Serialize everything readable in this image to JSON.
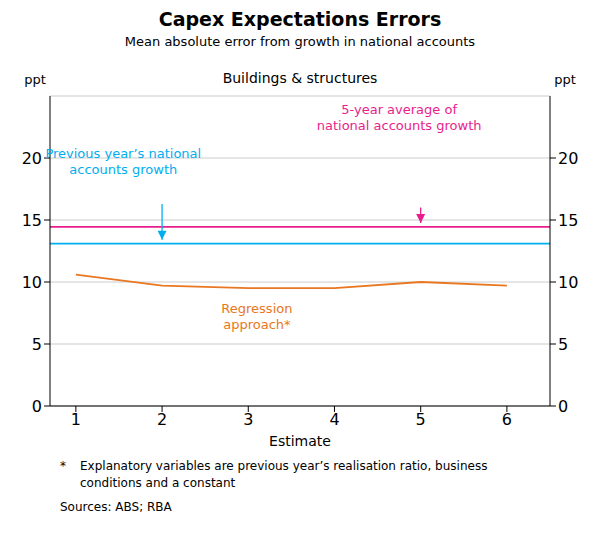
{
  "chart_data": {
    "type": "line",
    "title": "Capex Expectations Errors",
    "subtitle": "Mean absolute error from growth in national accounts",
    "panel_label": "Buildings & structures",
    "x_label": "Estimate",
    "y_label": "ppt",
    "y2_label": "ppt",
    "x": [
      1,
      2,
      3,
      4,
      5,
      6
    ],
    "series": [
      {
        "color": "#E87722",
        "values": [
          10.6,
          9.7,
          9.5,
          9.5,
          10.0,
          9.7
        ]
      }
    ],
    "hlines": [
      {
        "y": 13.1,
        "color": "#00AEEF"
      },
      {
        "y": 14.45,
        "color": "#E91E8C"
      }
    ],
    "annotations": [
      {
        "text": "Previous year’s national\naccounts growth",
        "color": "#00AEEF"
      },
      {
        "text": "5-year average of\nnational accounts growth",
        "color": "#E91E8C"
      },
      {
        "text": "Regression\napproach*",
        "color": "#E87722"
      }
    ],
    "xlim": [
      0.7,
      6.5
    ],
    "xticks": [
      1,
      2,
      3,
      4,
      5,
      6
    ],
    "ylim": [
      0,
      25
    ],
    "yticks": [
      0,
      5,
      10,
      15,
      20
    ],
    "y2lim": [
      0,
      25
    ],
    "y2ticks": [
      0,
      5,
      10,
      15,
      20
    ],
    "grid": "y",
    "footnote_marker": "*",
    "footnote": "Explanatory variables are previous year’s realisation ratio, business\nconditions and a constant",
    "source": "Sources: ABS; RBA"
  }
}
